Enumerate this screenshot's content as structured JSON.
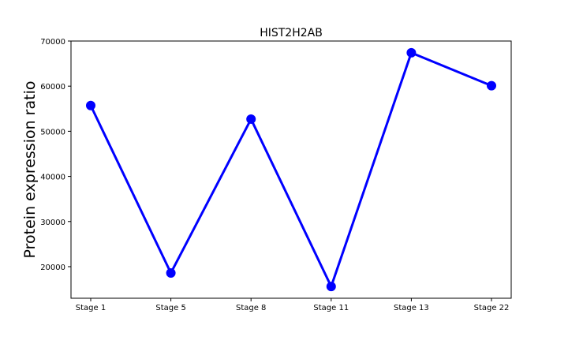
{
  "chart_data": {
    "type": "line",
    "title": "HIST2H2AB",
    "xlabel": "",
    "ylabel": "Protein expression ratio",
    "categories": [
      "Stage 1",
      "Stage 5",
      "Stage 8",
      "Stage 11",
      "Stage 13",
      "Stage 22"
    ],
    "series": [
      {
        "values": [
          55700,
          18600,
          52700,
          15600,
          67400,
          60100
        ],
        "color": "#0000ff",
        "marker": "circle"
      }
    ],
    "ylim": [
      13000,
      70000
    ],
    "yticks": [
      20000,
      30000,
      40000,
      50000,
      60000,
      70000
    ],
    "grid": false,
    "legend": "none"
  }
}
